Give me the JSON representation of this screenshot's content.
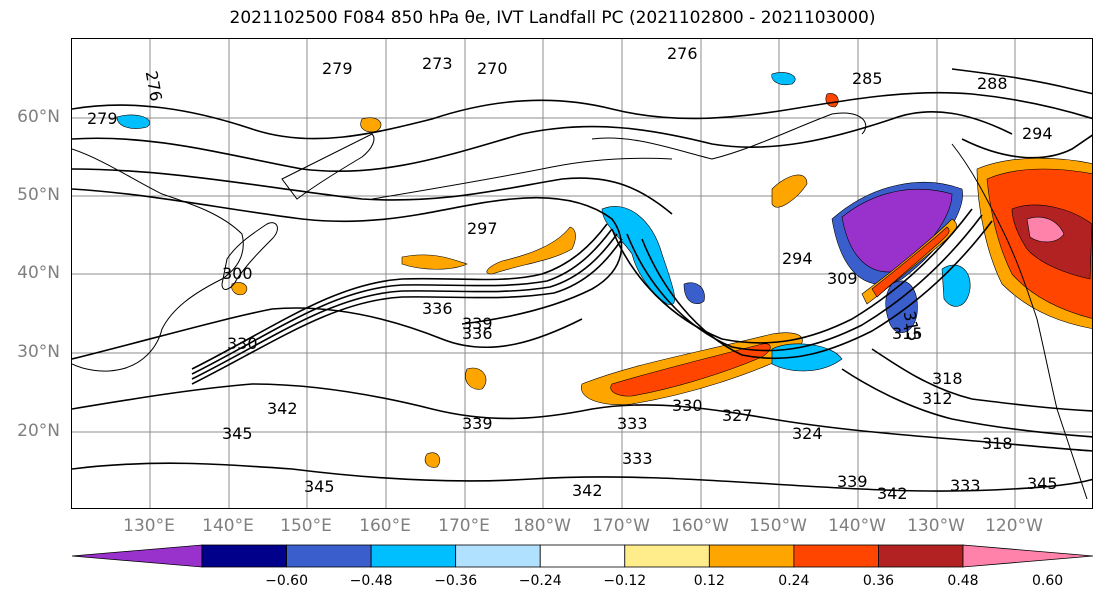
{
  "title": "2021102500 F084 850 hPa θe, IVT Landfall PC (2021102800 - 2021103000)",
  "latitude_labels": [
    "60°N",
    "50°N",
    "40°N",
    "30°N",
    "20°N"
  ],
  "longitude_labels": [
    "130°E",
    "140°E",
    "150°E",
    "160°E",
    "170°E",
    "180°W",
    "170°W",
    "160°W",
    "150°W",
    "140°W",
    "130°W",
    "120°W"
  ],
  "colorbar": {
    "colors": [
      "#9932cc",
      "#00008b",
      "#3a5fcd",
      "#00bfff",
      "#b0e2ff",
      "#ffffff",
      "#ffec8b",
      "#ffa500",
      "#ff4500",
      "#b22222",
      "#ff82ab"
    ],
    "tick_labels": [
      "−0.60",
      "−0.48",
      "−0.36",
      "−0.24",
      "−0.12",
      "0.12",
      "0.24",
      "0.36",
      "0.48",
      "0.60"
    ]
  },
  "contour_labels": [
    "276",
    "279",
    "273",
    "270",
    "276",
    "285",
    "288",
    "294",
    "279",
    "297",
    "294",
    "300",
    "309",
    "315",
    "336",
    "339",
    "336",
    "330",
    "342",
    "345",
    "333",
    "339",
    "330",
    "327",
    "324",
    "318",
    "312",
    "318",
    "333",
    "342",
    "345",
    "339",
    "342",
    "333",
    "345",
    "315"
  ]
}
